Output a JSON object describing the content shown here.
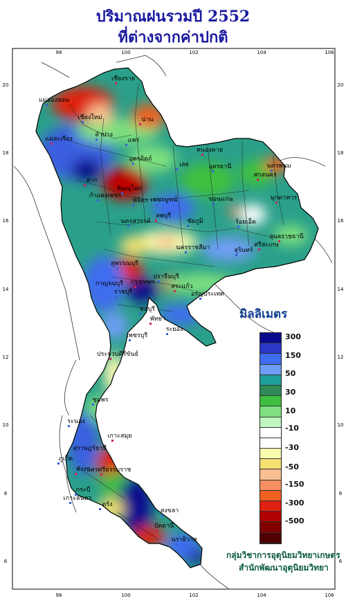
{
  "title": {
    "line1": "ปริมาณฝนรวมปี  2552",
    "line2": "ที่ต่างจากค่าปกติ"
  },
  "axes": {
    "lon_ticks": [
      "98",
      "100",
      "102",
      "104",
      "106"
    ],
    "lat_ticks": [
      "20",
      "18",
      "16",
      "14",
      "12",
      "10",
      "8",
      "6"
    ]
  },
  "legend": {
    "title": "มิลลิเมตร",
    "labels": [
      "300",
      "150",
      "50",
      "30",
      "10",
      "-10",
      "-30",
      "-50",
      "-150",
      "-300",
      "-500"
    ],
    "colors": [
      "#0a0a8c",
      "#2a38c8",
      "#3f6cf0",
      "#6f9df5",
      "#1e9f9a",
      "#2f8a57",
      "#3fbf3f",
      "#7ee07e",
      "#bff5bf",
      "#ffffff",
      "#ffffff",
      "#fbfbb0",
      "#f5e070",
      "#f8c090",
      "#f59060",
      "#f06020",
      "#e02010",
      "#b00000",
      "#800000",
      "#500000"
    ]
  },
  "provinces": [
    "เชียงราย",
    "เชียงใหม่",
    "แม่ฮ่องสอน",
    "น่าน",
    "ลำปาง",
    "แพร่",
    "แม่สะเรียง",
    "อุตรดิตถ์",
    "พิษณุโลก",
    "ตาก",
    "กำแพงเพชร",
    "พิจิตร",
    "หนองคาย",
    "อุดรธานี",
    "นครพนม",
    "สกลนคร",
    "เลย",
    "ขอนแก่น",
    "มุกดาหาร",
    "เพชรบูรณ์",
    "นครสวรรค์",
    "ลพบุรี",
    "ชัยภูมิ",
    "ร้อยเอ็ด",
    "อุบลราชธานี",
    "นครราชสีมา",
    "สุรินทร์",
    "ศรีสะเกษ",
    "กาญจนบุรี",
    "สุพรรณบุรี",
    "กรุงเทพฯ",
    "ราชบุรี",
    "ปราจีนบุรี",
    "สระแก้ว",
    "อรัญประเทศ",
    "ชลบุรี",
    "พัทยา",
    "ระยอง",
    "เพชรบุรี",
    "ประจวบคีรีขันธ์",
    "ชุมพร",
    "ระนอง",
    "เกาะสมุย",
    "สุราษฎร์ธานี",
    "ภูเก็ต",
    "นครศรีธรรมราช",
    "ตรัง",
    "สงขลา",
    "ปัตตานี",
    "นราธิวาส",
    "กระบี่",
    "พังงา",
    "เกาะลันตา"
  ],
  "credits": {
    "line1": "กลุ่มวิชาการอุตุนิยมวิทยาเกษตร",
    "line2": "สำนักพัฒนาอุตุนิยมวิทยา"
  }
}
